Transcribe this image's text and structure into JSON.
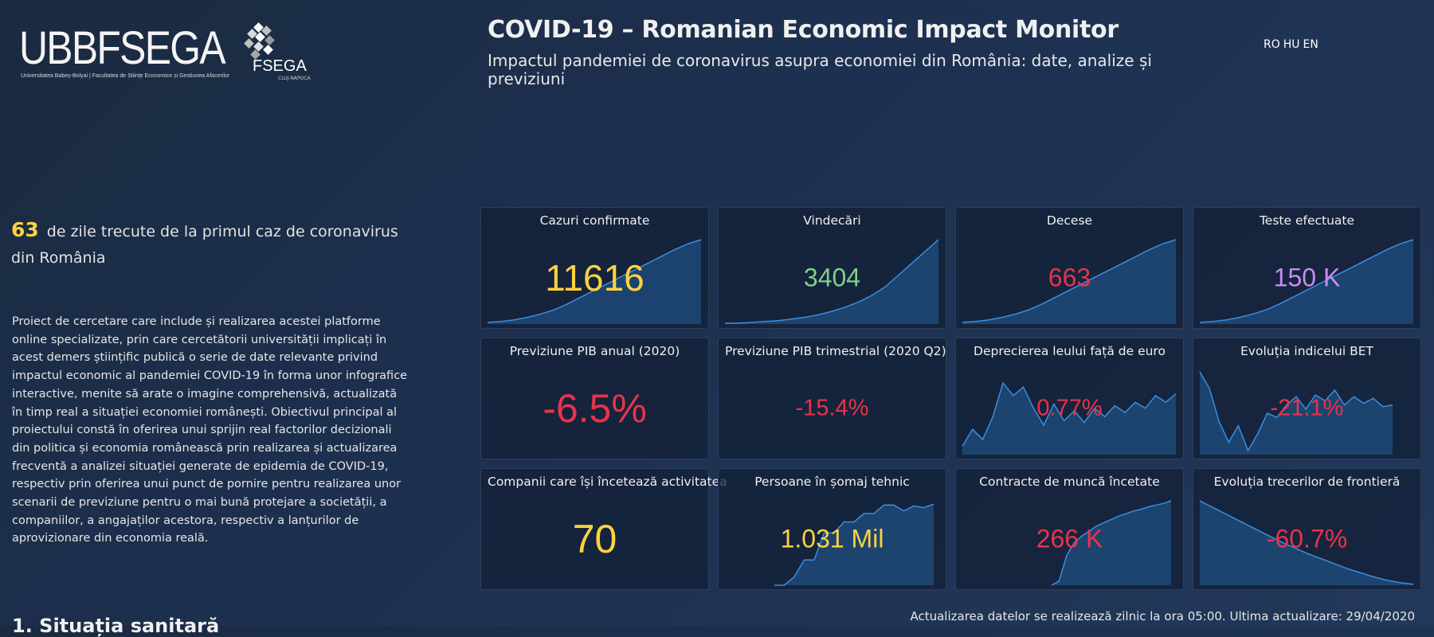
{
  "header": {
    "logo_text": "UBBFSEGA",
    "logo_subtext": "Universitatea Babeș-Bolyai | Facultatea de Științe Economice și Gestiunea Afacerilor",
    "logo_mark_label": "FSEGA",
    "logo_mark_subtext": "CLUJ-NAPOCA",
    "title": "COVID-19 – Romanian Economic Impact Monitor",
    "subtitle": "Impactul pandemiei de coronavirus asupra economiei din România: date, analize și previziuni",
    "languages": [
      "RO",
      "HU",
      "EN"
    ]
  },
  "intro": {
    "days_count": "63",
    "days_text": "de zile trecute de la primul caz de coronavirus din România",
    "description": "Proiect de cercetare care include și realizarea acestei platforme online specializate, prin care cercetătorii universității implicați în acest demers științific publică o serie de date relevante privind impactul economic al pandemiei COVID-19 în forma unor infografice interactive, menite să arate o imagine comprehensivă, actualizată în timp real a situației economiei românești. Obiectivul principal al proiectului constă în oferirea unui sprijin real factorilor decizionali din politica și economia românească prin realizarea și actualizarea frecventă a analizei situației generate de epidemia de COVID-19, respectiv prin oferirea unui punct de pornire pentru realizarea unor scenarii de previziune pentru o mai bună protejare a societății, a companiilor, a angajaților acestora, respectiv a lanțurilor de aprovizionare din economia reală.",
    "section_heading": "1. Situația sanitară"
  },
  "colors": {
    "yellow": "#ffd23f",
    "green": "#7fd08c",
    "red": "#e8334a",
    "purple": "#c58df0",
    "spark_line": "#3b8ee0",
    "spark_fill": "#1f4f80"
  },
  "cards": [
    {
      "label": "Cazuri confirmate",
      "value": "11616",
      "color": "yellow",
      "spark": "grow"
    },
    {
      "label": "Vindecări",
      "value": "3404",
      "color": "green",
      "spark": "grow-steep"
    },
    {
      "label": "Decese",
      "value": "663",
      "color": "red",
      "spark": "grow"
    },
    {
      "label": "Teste efectuate",
      "value": "150 K",
      "color": "purple",
      "spark": "grow"
    },
    {
      "label": "Previziune PIB anual (2020)",
      "value": "-6.5%",
      "color": "red",
      "spark": "none"
    },
    {
      "label": "Previziune PIB trimestrial (2020 Q2)",
      "value": "-15.4%",
      "color": "red",
      "spark": "none"
    },
    {
      "label": "Deprecierea leului față de euro",
      "value": "0.77%",
      "color": "red",
      "spark": "volatile"
    },
    {
      "label": "Evoluția indicelui BET",
      "value": "-21.1%",
      "color": "red",
      "spark": "drop"
    },
    {
      "label": "Companii care își încetează activitatea",
      "value": "70",
      "color": "yellow",
      "spark": "none"
    },
    {
      "label": "Persoane în șomaj tehnic",
      "value": "1.031 Mil",
      "color": "yellow",
      "spark": "step"
    },
    {
      "label": "Contracte de muncă încetate",
      "value": "266 K",
      "color": "red",
      "spark": "rise-plateau"
    },
    {
      "label": "Evoluția trecerilor de frontieră",
      "value": "-60.7%",
      "color": "red",
      "spark": "decline"
    }
  ],
  "footer": {
    "update_note": "Actualizarea datelor se realizează zilnic la ora 05:00. Ultima actualizare: 29/04/2020"
  }
}
